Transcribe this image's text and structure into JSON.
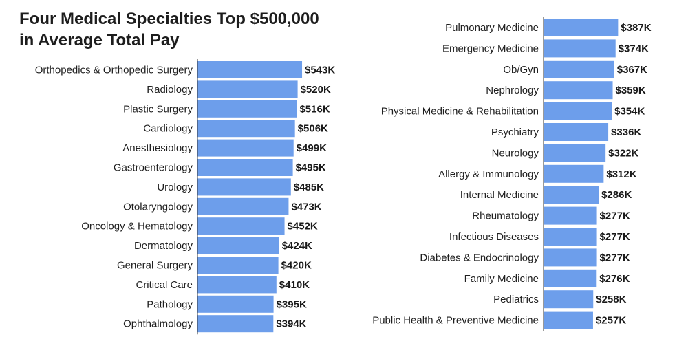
{
  "title": {
    "line1": "Four Medical Specialties Top $500,000",
    "line2": "in Average Total Pay"
  },
  "colors": {
    "bar": "#6d9eeb"
  },
  "chart_data": [
    {
      "type": "bar",
      "orientation": "horizontal",
      "title": "Four Medical Specialties Top $500,000 in Average Total Pay",
      "categories": [
        "Orthopedics & Orthopedic Surgery",
        "Radiology",
        "Plastic Surgery",
        "Cardiology",
        "Anesthesiology",
        "Gastroenterology",
        "Urology",
        "Otolaryngology",
        "Oncology & Hematology",
        "Dermatology",
        "General Surgery",
        "Critical Care",
        "Pathology",
        "Ophthalmology"
      ],
      "values": [
        543,
        520,
        516,
        506,
        499,
        495,
        485,
        473,
        452,
        424,
        420,
        410,
        395,
        394
      ],
      "value_labels": [
        "$543K",
        "$520K",
        "$516K",
        "$506K",
        "$499K",
        "$495K",
        "$485K",
        "$473K",
        "$452K",
        "$424K",
        "$420K",
        "$410K",
        "$395K",
        "$394K"
      ],
      "unit": "$K"
    },
    {
      "type": "bar",
      "orientation": "horizontal",
      "categories": [
        "Pulmonary Medicine",
        "Emergency Medicine",
        "Ob/Gyn",
        "Nephrology",
        "Physical Medicine & Rehabilitation",
        "Psychiatry",
        "Neurology",
        "Allergy & Immunology",
        "Internal Medicine",
        "Rheumatology",
        "Infectious Diseases",
        "Diabetes & Endocrinology",
        "Family Medicine",
        "Pediatrics",
        "Public Health & Preventive Medicine"
      ],
      "values": [
        387,
        374,
        367,
        359,
        354,
        336,
        322,
        312,
        286,
        277,
        277,
        277,
        276,
        258,
        257
      ],
      "value_labels": [
        "$387K",
        "$374K",
        "$367K",
        "$359K",
        "$354K",
        "$336K",
        "$322K",
        "$312K",
        "$286K",
        "$277K",
        "$277K",
        "$277K",
        "$276K",
        "$258K",
        "$257K"
      ],
      "unit": "$K"
    }
  ]
}
